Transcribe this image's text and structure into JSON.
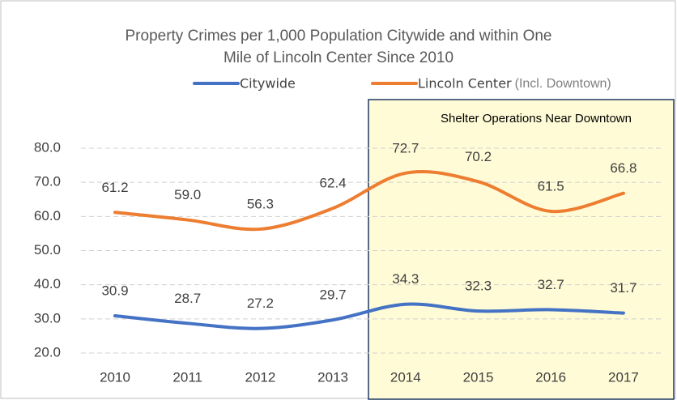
{
  "chart_data": {
    "type": "line",
    "title_lines": [
      "Property Crimes per 1,000 Population Citywide and within One",
      "Mile of Lincoln Center Since 2010"
    ],
    "categories": [
      "2010",
      "2011",
      "2012",
      "2013",
      "2014",
      "2015",
      "2016",
      "2017"
    ],
    "series": [
      {
        "name": "Citywide",
        "color": "#4472c4",
        "values": [
          30.9,
          28.7,
          27.2,
          29.7,
          34.3,
          32.3,
          32.7,
          31.7
        ],
        "value_labels": [
          "30.9",
          "28.7",
          "27.2",
          "29.7",
          "34.3",
          "32.3",
          "32.7",
          "31.7"
        ]
      },
      {
        "name": "Lincoln Center",
        "color": "#ed7d31",
        "values": [
          61.2,
          59.0,
          56.3,
          62.4,
          72.7,
          70.2,
          61.5,
          66.8
        ],
        "value_labels": [
          "61.2",
          "59.0",
          "56.3",
          "62.4",
          "72.7",
          "70.2",
          "61.5",
          "66.8"
        ]
      }
    ],
    "legend_note": "(Incl. Downtown)",
    "highlight_label": "Shelter Operations Near Downtown",
    "ylim": [
      20,
      80
    ],
    "yticks": [
      {
        "value": 20,
        "label": "20.0"
      },
      {
        "value": 30,
        "label": "30.0"
      },
      {
        "value": 40,
        "label": "40.0"
      },
      {
        "value": 50,
        "label": "50.0"
      },
      {
        "value": 60,
        "label": "60.0"
      },
      {
        "value": 70,
        "label": "70.0"
      },
      {
        "value": 80,
        "label": "80.0"
      }
    ],
    "grid": true
  }
}
